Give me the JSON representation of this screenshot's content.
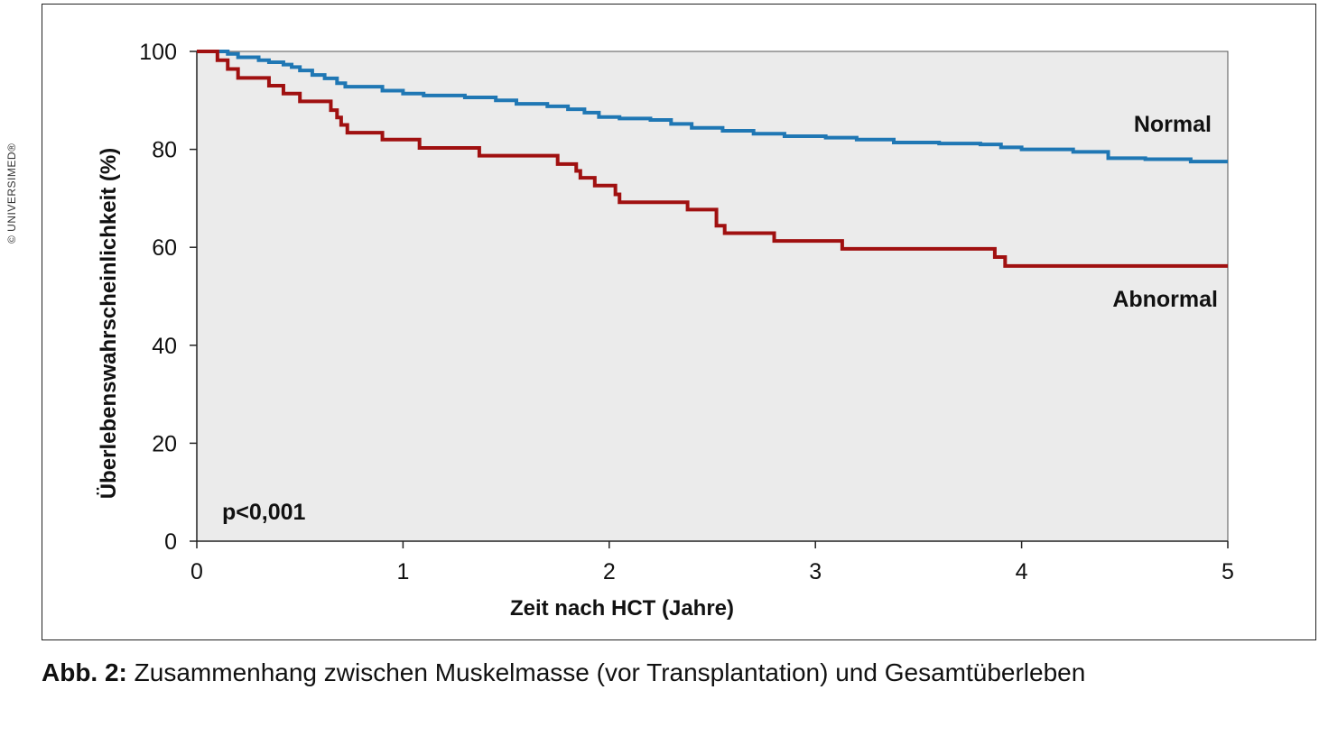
{
  "copyright": "© UNIVERSIMED®",
  "caption": {
    "label": "Abb. 2:",
    "text": " Zusammenhang zwischen Muskelmasse (vor Transplantation) und Gesamtüberleben"
  },
  "chart_data": {
    "type": "line",
    "title": "",
    "xlabel": "Zeit nach HCT (Jahre)",
    "ylabel": "Überlebenswahrscheinlichkeit (%)",
    "xlim": [
      0,
      5
    ],
    "ylim": [
      0,
      100
    ],
    "xticks": [
      0,
      1,
      2,
      3,
      4,
      5
    ],
    "yticks": [
      0,
      20,
      40,
      60,
      80,
      100
    ],
    "grid": false,
    "background": "#ebebeb",
    "annotation": "p<0,001",
    "series": [
      {
        "name": "Normal",
        "color": "#1f77b4",
        "step": true,
        "points": [
          [
            0,
            100
          ],
          [
            0.15,
            99.5
          ],
          [
            0.2,
            98.8
          ],
          [
            0.3,
            98.2
          ],
          [
            0.35,
            97.8
          ],
          [
            0.42,
            97.3
          ],
          [
            0.46,
            96.8
          ],
          [
            0.5,
            96.1
          ],
          [
            0.56,
            95.2
          ],
          [
            0.62,
            94.5
          ],
          [
            0.68,
            93.5
          ],
          [
            0.72,
            92.8
          ],
          [
            0.9,
            92
          ],
          [
            1.0,
            91.4
          ],
          [
            1.1,
            91
          ],
          [
            1.3,
            90.6
          ],
          [
            1.45,
            90
          ],
          [
            1.55,
            89.3
          ],
          [
            1.7,
            88.8
          ],
          [
            1.8,
            88.2
          ],
          [
            1.88,
            87.5
          ],
          [
            1.95,
            86.6
          ],
          [
            2.05,
            86.3
          ],
          [
            2.2,
            86
          ],
          [
            2.3,
            85.2
          ],
          [
            2.4,
            84.4
          ],
          [
            2.55,
            83.8
          ],
          [
            2.7,
            83.2
          ],
          [
            2.85,
            82.7
          ],
          [
            3.05,
            82.4
          ],
          [
            3.2,
            82
          ],
          [
            3.38,
            81.4
          ],
          [
            3.6,
            81.2
          ],
          [
            3.8,
            81
          ],
          [
            3.9,
            80.4
          ],
          [
            4.0,
            80
          ],
          [
            4.25,
            79.5
          ],
          [
            4.42,
            78.2
          ],
          [
            4.6,
            78
          ],
          [
            4.82,
            77.5
          ],
          [
            5.0,
            77.5
          ]
        ]
      },
      {
        "name": "Abnormal",
        "color": "#a01010",
        "step": true,
        "points": [
          [
            0,
            100
          ],
          [
            0.1,
            98.2
          ],
          [
            0.15,
            96.4
          ],
          [
            0.2,
            94.6
          ],
          [
            0.35,
            93
          ],
          [
            0.42,
            91.4
          ],
          [
            0.5,
            89.8
          ],
          [
            0.65,
            88
          ],
          [
            0.68,
            86.5
          ],
          [
            0.7,
            85
          ],
          [
            0.73,
            83.4
          ],
          [
            0.9,
            82
          ],
          [
            1.08,
            80.3
          ],
          [
            1.37,
            78.7
          ],
          [
            1.75,
            77
          ],
          [
            1.84,
            75.6
          ],
          [
            1.86,
            74.2
          ],
          [
            1.93,
            72.6
          ],
          [
            2.03,
            70.8
          ],
          [
            2.05,
            69.2
          ],
          [
            2.38,
            67.7
          ],
          [
            2.52,
            64.4
          ],
          [
            2.56,
            62.9
          ],
          [
            2.8,
            61.3
          ],
          [
            3.13,
            59.7
          ],
          [
            3.87,
            58
          ],
          [
            3.92,
            56.2
          ],
          [
            5.0,
            56.2
          ]
        ]
      }
    ]
  }
}
